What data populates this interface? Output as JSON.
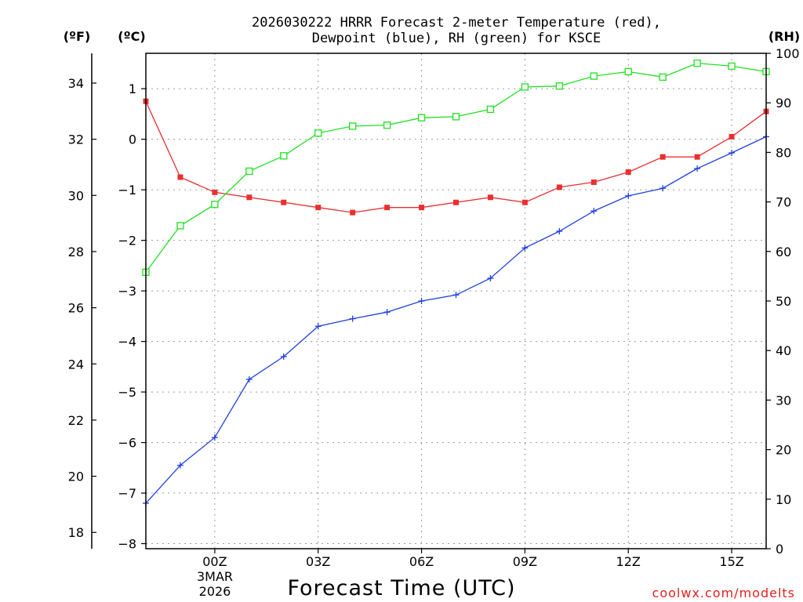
{
  "chart_data": {
    "type": "line",
    "title_line1": "2026030222 HRRR Forecast 2-meter Temperature (red),",
    "title_line2": "Dewpoint (blue), RH (green) for KSCE",
    "xlabel": "Forecast Time (UTC)",
    "x_tick_labels": [
      "00Z",
      "03Z",
      "06Z",
      "09Z",
      "12Z",
      "15Z"
    ],
    "x_tick_hours": [
      2,
      5,
      8,
      11,
      14,
      17
    ],
    "x_date_line1": "3MAR",
    "x_date_line2": "2026",
    "x_range_hours": [
      0,
      18
    ],
    "left_unit_f": "(ºF)",
    "left_unit_c": "(ºC)",
    "right_unit": "(RH)",
    "f_ticks": [
      18,
      20,
      22,
      24,
      26,
      28,
      30,
      32,
      34
    ],
    "c_ticks": [
      -8,
      -7,
      -6,
      -5,
      -4,
      -3,
      -2,
      -1,
      0,
      1
    ],
    "rh_ticks": [
      0,
      10,
      20,
      30,
      40,
      50,
      60,
      70,
      80,
      90,
      100
    ],
    "c_range": [
      -8.1,
      1.7
    ],
    "rh_range": [
      0,
      100
    ],
    "series": [
      {
        "name": "Temperature",
        "units": "°C",
        "color": "#e83030",
        "marker": "filled-square",
        "x": [
          0,
          1,
          2,
          3,
          4,
          5,
          6,
          7,
          8,
          9,
          10,
          11,
          12,
          13,
          14,
          15,
          16,
          17,
          18
        ],
        "values": [
          0.75,
          -0.75,
          -1.05,
          -1.15,
          -1.25,
          -1.35,
          -1.45,
          -1.35,
          -1.35,
          -1.25,
          -1.15,
          -1.25,
          -0.95,
          -0.85,
          -0.65,
          -0.35,
          -0.35,
          0.05,
          0.55
        ]
      },
      {
        "name": "Dewpoint",
        "units": "°C",
        "color": "#2040e0",
        "marker": "plus",
        "x": [
          0,
          1,
          2,
          3,
          4,
          5,
          6,
          7,
          8,
          9,
          10,
          11,
          12,
          13,
          14,
          15,
          16,
          17,
          18
        ],
        "values": [
          -7.2,
          -6.45,
          -5.9,
          -4.75,
          -4.3,
          -3.7,
          -3.55,
          -3.42,
          -3.2,
          -3.08,
          -2.75,
          -2.15,
          -1.82,
          -1.42,
          -1.12,
          -0.97,
          -0.58,
          -0.27,
          0.05
        ]
      },
      {
        "name": "RH",
        "units": "%",
        "color": "#20e020",
        "marker": "open-square",
        "x": [
          0,
          1,
          2,
          3,
          4,
          5,
          6,
          7,
          8,
          9,
          10,
          11,
          12,
          13,
          14,
          15,
          16,
          17,
          18
        ],
        "values": [
          55.8,
          65.2,
          69.5,
          76.2,
          79.3,
          83.9,
          85.3,
          85.5,
          87.0,
          87.2,
          88.7,
          93.2,
          93.4,
          95.4,
          96.3,
          95.2,
          98.0,
          97.4,
          96.3
        ]
      }
    ]
  },
  "credit": "coolwx.com/modelts"
}
